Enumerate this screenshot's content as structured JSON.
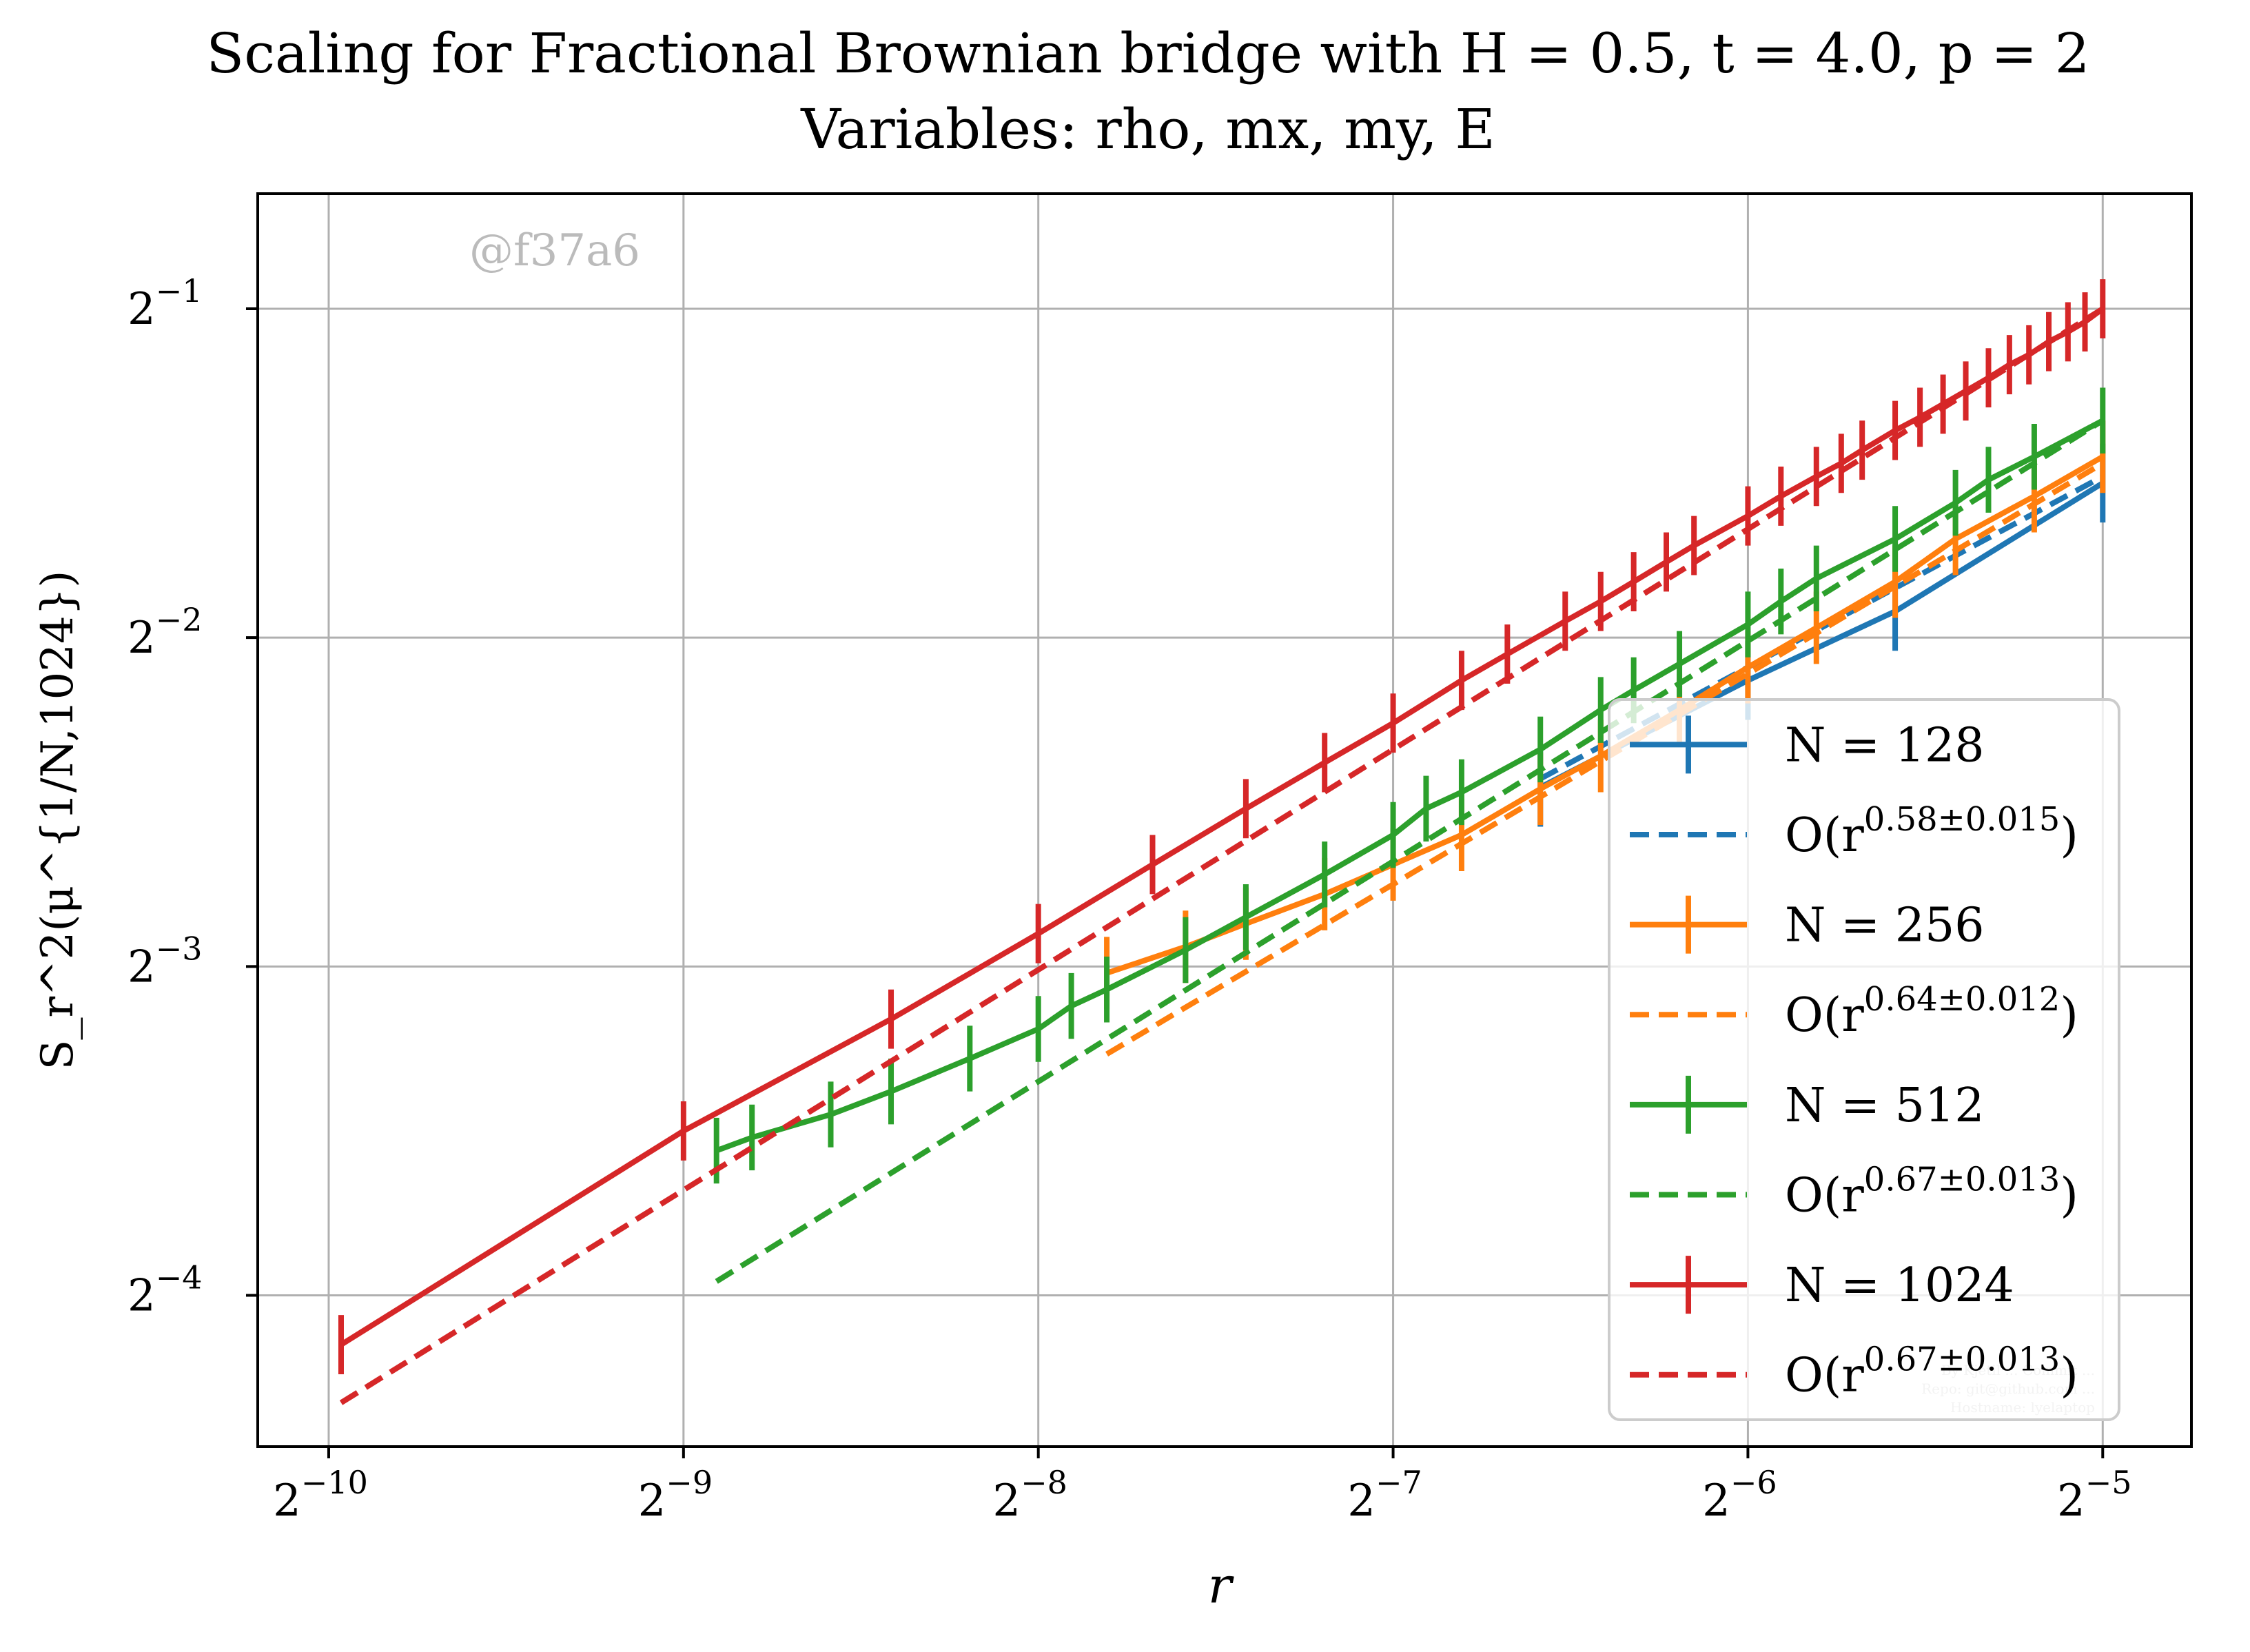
{
  "chart_data": {
    "type": "line",
    "title_line1": "Scaling for Fractional Brownian bridge with H = 0.5, t = 4.0, p = 2",
    "title_line2": "Variables: rho, mx, my, E",
    "xlabel": "r",
    "ylabel": "S_r^2(μ^{1/N,1024})",
    "x_scale": "log2",
    "y_scale": "log2",
    "xlim_log2": [
      -10.2,
      -4.75
    ],
    "ylim_log2": [
      -4.46,
      -0.65
    ],
    "x_ticks": [
      {
        "exp": -10,
        "label": "2",
        "sup": "−10"
      },
      {
        "exp": -9,
        "label": "2",
        "sup": "−9"
      },
      {
        "exp": -8,
        "label": "2",
        "sup": "−8"
      },
      {
        "exp": -7,
        "label": "2",
        "sup": "−7"
      },
      {
        "exp": -6,
        "label": "2",
        "sup": "−6"
      },
      {
        "exp": -5,
        "label": "2",
        "sup": "−5"
      }
    ],
    "y_ticks": [
      {
        "exp": -1,
        "label": "2",
        "sup": "−1"
      },
      {
        "exp": -2,
        "label": "2",
        "sup": "−2"
      },
      {
        "exp": -3,
        "label": "2",
        "sup": "−3"
      },
      {
        "exp": -4,
        "label": "2",
        "sup": "−4"
      }
    ],
    "grid": true,
    "legend_position": "lower-right",
    "watermark": "@f37a6",
    "footer_lines": [
      "By Kjetil ... Commit ...",
      "Repo: git@github.com ...",
      "Hostname: lyelaptop"
    ],
    "series": [
      {
        "name": "N = 128",
        "color": "#1f77b4",
        "x_log2": [
          -6.585,
          -6.0,
          -5.585,
          -5.0
        ],
        "y_log2": [
          -2.455,
          -2.13,
          -1.92,
          -1.53
        ],
        "err_log2": 0.12,
        "fit_label_main": "O(r",
        "fit_label_sup": "0.58±0.015",
        "fit_label_end": ")",
        "fit_exponent": 0.58,
        "fit_range_log2": [
          -6.585,
          -5.0
        ],
        "fit_at_end_log2": -1.51
      },
      {
        "name": "N = 256",
        "color": "#ff7f0e",
        "x_log2": [
          -7.807,
          -7.585,
          -7.415,
          -7.193,
          -7.0,
          -6.807,
          -6.585,
          -6.415,
          -6.193,
          -6.0,
          -5.807,
          -5.585,
          -5.415,
          -5.193,
          -5.0
        ],
        "y_log2": [
          -3.02,
          -2.94,
          -2.87,
          -2.78,
          -2.69,
          -2.6,
          -2.46,
          -2.36,
          -2.22,
          -2.09,
          -1.97,
          -1.83,
          -1.7,
          -1.57,
          -1.45
        ],
        "err_log2": 0.11,
        "fit_label_main": "O(r",
        "fit_label_sup": "0.64±0.012",
        "fit_label_end": ")",
        "fit_exponent": 0.64,
        "fit_range_log2": [
          -7.807,
          -5.0
        ],
        "fit_at_end_log2": -1.47
      },
      {
        "name": "N = 512",
        "color": "#2ca02c",
        "x_log2": [
          -8.907,
          -8.807,
          -8.585,
          -8.415,
          -8.193,
          -8.0,
          -7.907,
          -7.807,
          -7.585,
          -7.415,
          -7.193,
          -7.0,
          -6.907,
          -6.807,
          -6.585,
          -6.415,
          -6.322,
          -6.193,
          -6.0,
          -5.907,
          -5.807,
          -5.585,
          -5.415,
          -5.322,
          -5.193,
          -5.0
        ],
        "y_log2": [
          -3.56,
          -3.52,
          -3.45,
          -3.38,
          -3.28,
          -3.19,
          -3.12,
          -3.07,
          -2.95,
          -2.85,
          -2.72,
          -2.6,
          -2.52,
          -2.47,
          -2.34,
          -2.22,
          -2.16,
          -2.08,
          -1.96,
          -1.89,
          -1.82,
          -1.7,
          -1.59,
          -1.52,
          -1.45,
          -1.34
        ],
        "err_log2": 0.1,
        "fit_label_main": "O(r",
        "fit_label_sup": "0.67±0.013",
        "fit_label_end": ")",
        "fit_exponent": 0.67,
        "fit_range_log2": [
          -8.907,
          -5.0
        ],
        "fit_at_end_log2": -1.34
      },
      {
        "name": "N = 1024",
        "color": "#d62728",
        "x_log2": [
          -9.965,
          -9.0,
          -8.415,
          -8.0,
          -7.678,
          -7.415,
          -7.193,
          -7.0,
          -6.807,
          -6.678,
          -6.515,
          -6.415,
          -6.322,
          -6.23,
          -6.152,
          -6.0,
          -5.907,
          -5.807,
          -5.737,
          -5.678,
          -5.585,
          -5.515,
          -5.45,
          -5.386,
          -5.322,
          -5.263,
          -5.208,
          -5.152,
          -5.098,
          -5.05,
          -5.0
        ],
        "y_log2": [
          -4.15,
          -3.5,
          -3.16,
          -2.9,
          -2.69,
          -2.52,
          -2.38,
          -2.26,
          -2.13,
          -2.05,
          -1.95,
          -1.89,
          -1.83,
          -1.77,
          -1.72,
          -1.63,
          -1.57,
          -1.51,
          -1.47,
          -1.43,
          -1.37,
          -1.33,
          -1.29,
          -1.25,
          -1.21,
          -1.17,
          -1.14,
          -1.1,
          -1.07,
          -1.04,
          -1.0
        ],
        "err_log2": 0.09,
        "fit_label_main": "O(r",
        "fit_label_sup": "0.67±0.013",
        "fit_label_end": ")",
        "fit_exponent": 0.67,
        "fit_range_log2": [
          -9.965,
          -5.0
        ],
        "fit_at_end_log2": -1.0
      }
    ]
  }
}
